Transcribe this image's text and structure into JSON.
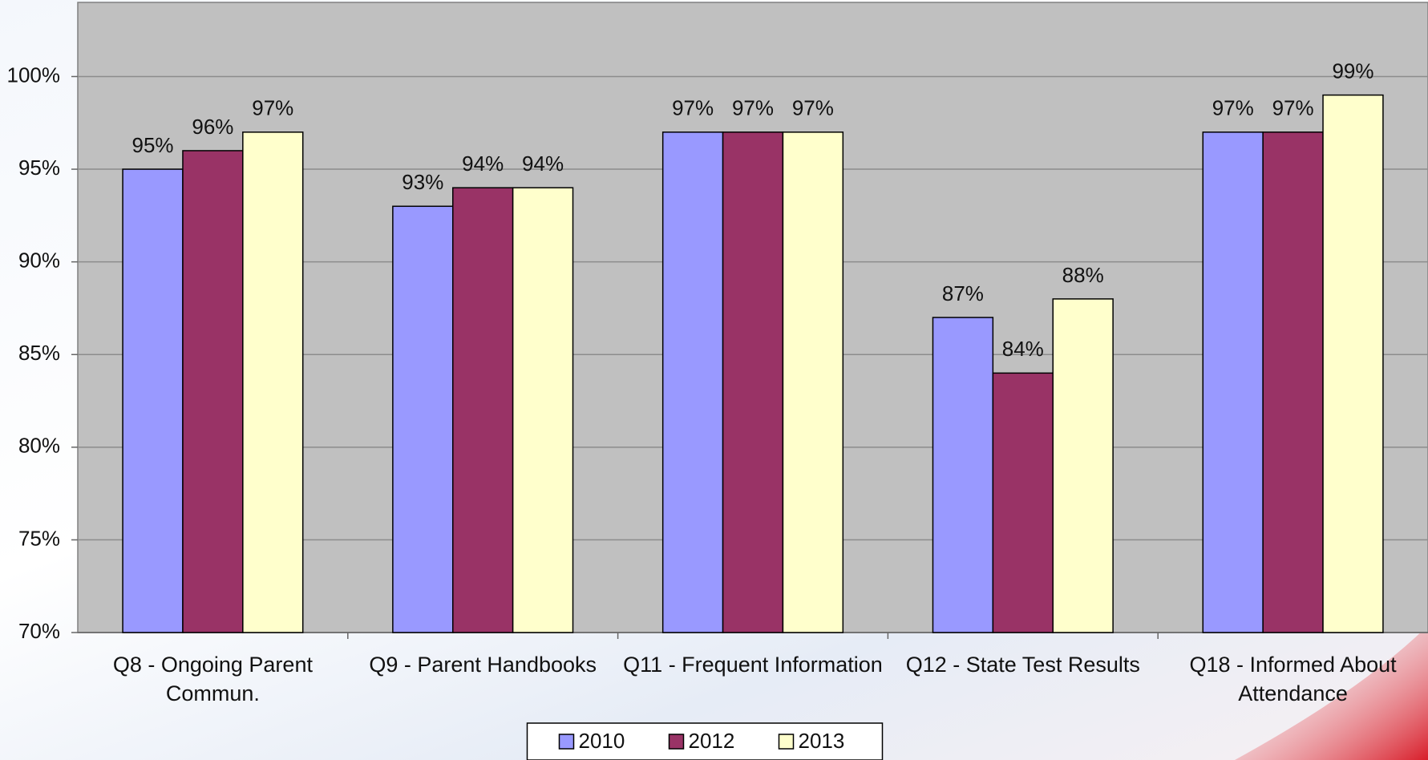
{
  "chart_data": {
    "type": "bar",
    "categories": [
      "Q8 - Ongoing Parent Commun.",
      "Q9 - Parent Handbooks",
      "Q11 - Frequent Information",
      "Q12 - State Test Results",
      "Q18 - Informed About Attendance"
    ],
    "series": [
      {
        "name": "2010",
        "color": "#9999ff",
        "values": [
          95,
          93,
          97,
          87,
          97
        ],
        "value_labels": [
          "95%",
          "93%",
          "97%",
          "87%",
          "97%"
        ]
      },
      {
        "name": "2012",
        "color": "#993366",
        "values": [
          96,
          94,
          97,
          84,
          97
        ],
        "value_labels": [
          "96%",
          "94%",
          "97%",
          "84%",
          "97%"
        ]
      },
      {
        "name": "2013",
        "color": "#ffffcc",
        "values": [
          97,
          94,
          97,
          88,
          99
        ],
        "value_labels": [
          "97%",
          "94%",
          "97%",
          "88%",
          "99%"
        ]
      }
    ],
    "ylim": [
      70,
      104
    ],
    "yticks": [
      {
        "value": 70,
        "label": "70%"
      },
      {
        "value": 75,
        "label": "75%"
      },
      {
        "value": 80,
        "label": "80%"
      },
      {
        "value": 85,
        "label": "85%"
      },
      {
        "value": 90,
        "label": "90%"
      },
      {
        "value": 95,
        "label": "95%"
      },
      {
        "value": 100,
        "label": "100%"
      }
    ],
    "grid": true,
    "legend": "bottom"
  }
}
